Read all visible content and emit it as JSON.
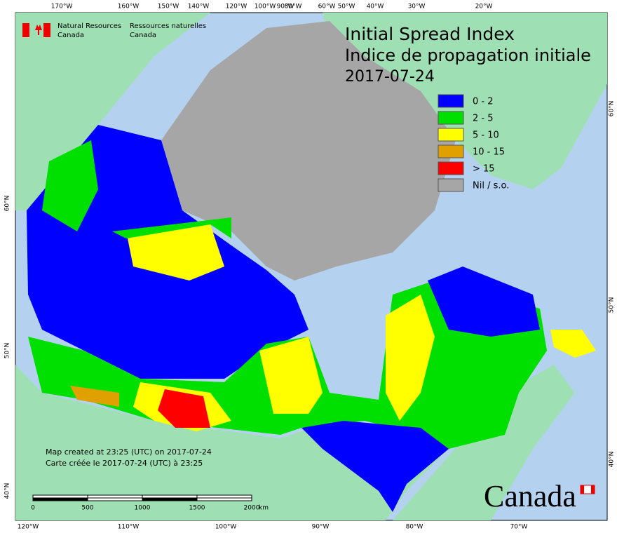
{
  "header": {
    "title": "Initial Spread Index",
    "title_fr": "Indice de propagation initiale",
    "date": "2017-07-24"
  },
  "agency": {
    "en": [
      "Natural Resources",
      "Canada"
    ],
    "fr": [
      "Ressources naturelles",
      "Canada"
    ]
  },
  "legend": [
    {
      "label": "0 - 2",
      "color": "#0000ff"
    },
    {
      "label": "2 - 5",
      "color": "#00e000"
    },
    {
      "label": "5 - 10",
      "color": "#ffff00"
    },
    {
      "label": "10 - 15",
      "color": "#e0a000"
    },
    {
      "label": "> 15",
      "color": "#ff0000"
    },
    {
      "label": "Nil / s.o.",
      "color": "#a6a6a6"
    }
  ],
  "graticule": {
    "top": [
      "170°W",
      "160°W",
      "150°W",
      "140°W",
      "120°W",
      "100°W",
      "90°W",
      "80°W",
      "60°W",
      "50°W",
      "40°W",
      "30°W",
      "20°W"
    ],
    "bottom": [
      "120°W",
      "110°W",
      "100°W",
      "90°W",
      "80°W",
      "70°W"
    ],
    "left": [
      "60°N",
      "50°N",
      "40°N"
    ],
    "right": [
      "60°N",
      "50°N",
      "40°N"
    ]
  },
  "scale_bar": {
    "ticks": [
      "0",
      "500",
      "1000",
      "1500",
      "2000"
    ],
    "unit": "km"
  },
  "notes": [
    "Map created at 23:25 (UTC) on 2017-07-24",
    "Carte créée le 2017-07-24 (UTC) à 23:25"
  ],
  "wordmark": "Canada"
}
